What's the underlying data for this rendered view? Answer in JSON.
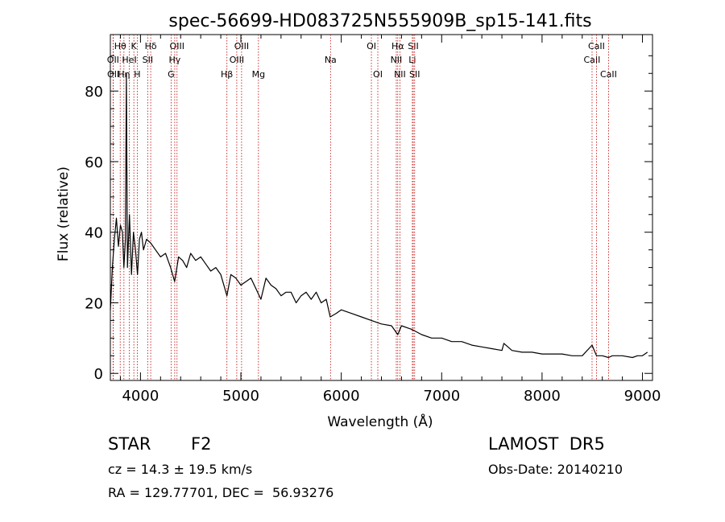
{
  "chart_data": {
    "type": "line",
    "title": "spec-56699-HD083725N555909B_sp15-141.fits",
    "xlabel": "Wavelength (Å)",
    "ylabel": "Flux (relative)",
    "xlim": [
      3700,
      9100
    ],
    "ylim": [
      -2,
      96
    ],
    "x_ticks": [
      4000,
      5000,
      6000,
      7000,
      8000,
      9000
    ],
    "y_ticks": [
      0,
      20,
      40,
      60,
      80
    ],
    "grid": false,
    "series": [
      {
        "color": "#000000",
        "x": [
          3700,
          3720,
          3740,
          3760,
          3780,
          3800,
          3820,
          3835,
          3850,
          3860,
          3870,
          3890,
          3910,
          3930,
          3950,
          3970,
          3990,
          4010,
          4030,
          4060,
          4100,
          4150,
          4200,
          4250,
          4300,
          4340,
          4380,
          4420,
          4460,
          4500,
          4550,
          4600,
          4650,
          4700,
          4750,
          4800,
          4861,
          4900,
          4950,
          5000,
          5050,
          5100,
          5150,
          5200,
          5250,
          5300,
          5350,
          5400,
          5450,
          5500,
          5550,
          5600,
          5650,
          5700,
          5750,
          5800,
          5850,
          5890,
          5950,
          6000,
          6100,
          6200,
          6300,
          6400,
          6500,
          6563,
          6600,
          6700,
          6800,
          6900,
          7000,
          7100,
          7200,
          7300,
          7400,
          7500,
          7600,
          7620,
          7700,
          7800,
          7900,
          8000,
          8100,
          8200,
          8300,
          8400,
          8498,
          8542,
          8600,
          8662,
          8700,
          8800,
          8900,
          8950,
          9000,
          9050
        ],
        "y": [
          18,
          30,
          38,
          44,
          36,
          42,
          40,
          30,
          38,
          85,
          30,
          45,
          28,
          40,
          35,
          28,
          38,
          40,
          35,
          38,
          37,
          35,
          33,
          34,
          30,
          26,
          33,
          32,
          30,
          34,
          32,
          33,
          31,
          29,
          30,
          28,
          22,
          28,
          27,
          25,
          26,
          27,
          24,
          21,
          27,
          25,
          24,
          22,
          23,
          23,
          20,
          22,
          23,
          21,
          23,
          20,
          21,
          16,
          17,
          18,
          17,
          16,
          15,
          14,
          13.5,
          11,
          13.5,
          12.5,
          11,
          10,
          10,
          9,
          9,
          8,
          7.5,
          7,
          6.5,
          8.5,
          6.5,
          6,
          6,
          5.5,
          5.5,
          5.5,
          5,
          5,
          8,
          5,
          5,
          4.5,
          5,
          5,
          4.5,
          5,
          5,
          6
        ]
      }
    ],
    "spectral_lines": [
      {
        "name": "Hθ",
        "wavelength": 3798,
        "row": 1
      },
      {
        "name": "OII",
        "wavelength": 3727,
        "row": 2
      },
      {
        "name": "OII",
        "wavelength": 3729,
        "row": 3
      },
      {
        "name": "Hη",
        "wavelength": 3835,
        "row": 3
      },
      {
        "name": "HeI",
        "wavelength": 3889,
        "row": 2
      },
      {
        "name": "K",
        "wavelength": 3934,
        "row": 1
      },
      {
        "name": "H",
        "wavelength": 3968,
        "row": 3
      },
      {
        "name": "SII",
        "wavelength": 4072,
        "row": 2
      },
      {
        "name": "Hδ",
        "wavelength": 4102,
        "row": 1
      },
      {
        "name": "Hγ",
        "wavelength": 4341,
        "row": 2
      },
      {
        "name": "G",
        "wavelength": 4305,
        "row": 3
      },
      {
        "name": "OIII",
        "wavelength": 4364,
        "row": 1
      },
      {
        "name": "Hβ",
        "wavelength": 4861,
        "row": 3
      },
      {
        "name": "OIII",
        "wavelength": 4959,
        "row": 2
      },
      {
        "name": "OIII",
        "wavelength": 5007,
        "row": 1
      },
      {
        "name": "Mg",
        "wavelength": 5175,
        "row": 3
      },
      {
        "name": "Na",
        "wavelength": 5893,
        "row": 2
      },
      {
        "name": "OI",
        "wavelength": 6300,
        "row": 1
      },
      {
        "name": "OI",
        "wavelength": 6364,
        "row": 3
      },
      {
        "name": "NII",
        "wavelength": 6548,
        "row": 2
      },
      {
        "name": "Hα",
        "wavelength": 6563,
        "row": 1
      },
      {
        "name": "NII",
        "wavelength": 6584,
        "row": 3
      },
      {
        "name": "SII",
        "wavelength": 6717,
        "row": 1
      },
      {
        "name": "Li",
        "wavelength": 6708,
        "row": 2
      },
      {
        "name": "SII",
        "wavelength": 6731,
        "row": 3
      },
      {
        "name": "CaII",
        "wavelength": 8498,
        "row": 2
      },
      {
        "name": "CaII",
        "wavelength": 8542,
        "row": 1
      },
      {
        "name": "CaII",
        "wavelength": 8662,
        "row": 3
      }
    ],
    "line_marker_color": "#c00000"
  },
  "info": {
    "object_class": "STAR",
    "subclass": "F2",
    "survey": "LAMOST  DR5",
    "redshift_text": "cz = 14.3 ± 19.5 km/s",
    "obs_date_text": "Obs-Date: 20140210",
    "coords_text": "RA = 129.77701, DEC =  56.93276"
  }
}
